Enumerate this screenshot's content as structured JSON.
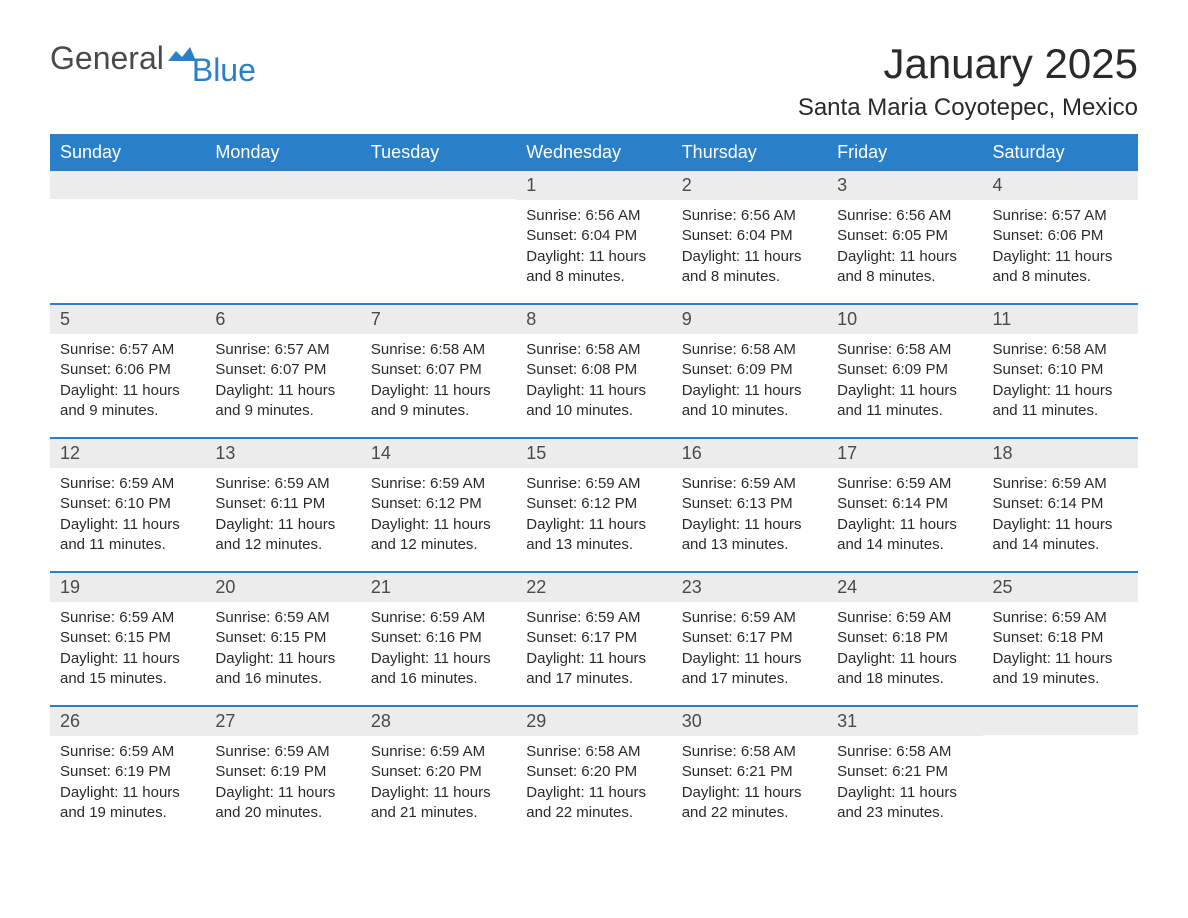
{
  "logo": {
    "general": "General",
    "blue": "Blue"
  },
  "header": {
    "month_title": "January 2025",
    "location": "Santa Maria Coyotepec, Mexico"
  },
  "colors": {
    "header_bg": "#2a7fc9",
    "header_text": "#ffffff",
    "day_number_bg": "#ececec",
    "text": "#2a2a2a",
    "row_border": "#2a7fc9"
  },
  "weekdays": [
    "Sunday",
    "Monday",
    "Tuesday",
    "Wednesday",
    "Thursday",
    "Friday",
    "Saturday"
  ],
  "weeks": [
    [
      null,
      null,
      null,
      {
        "day": "1",
        "sunrise": "Sunrise: 6:56 AM",
        "sunset": "Sunset: 6:04 PM",
        "daylight": "Daylight: 11 hours and 8 minutes."
      },
      {
        "day": "2",
        "sunrise": "Sunrise: 6:56 AM",
        "sunset": "Sunset: 6:04 PM",
        "daylight": "Daylight: 11 hours and 8 minutes."
      },
      {
        "day": "3",
        "sunrise": "Sunrise: 6:56 AM",
        "sunset": "Sunset: 6:05 PM",
        "daylight": "Daylight: 11 hours and 8 minutes."
      },
      {
        "day": "4",
        "sunrise": "Sunrise: 6:57 AM",
        "sunset": "Sunset: 6:06 PM",
        "daylight": "Daylight: 11 hours and 8 minutes."
      }
    ],
    [
      {
        "day": "5",
        "sunrise": "Sunrise: 6:57 AM",
        "sunset": "Sunset: 6:06 PM",
        "daylight": "Daylight: 11 hours and 9 minutes."
      },
      {
        "day": "6",
        "sunrise": "Sunrise: 6:57 AM",
        "sunset": "Sunset: 6:07 PM",
        "daylight": "Daylight: 11 hours and 9 minutes."
      },
      {
        "day": "7",
        "sunrise": "Sunrise: 6:58 AM",
        "sunset": "Sunset: 6:07 PM",
        "daylight": "Daylight: 11 hours and 9 minutes."
      },
      {
        "day": "8",
        "sunrise": "Sunrise: 6:58 AM",
        "sunset": "Sunset: 6:08 PM",
        "daylight": "Daylight: 11 hours and 10 minutes."
      },
      {
        "day": "9",
        "sunrise": "Sunrise: 6:58 AM",
        "sunset": "Sunset: 6:09 PM",
        "daylight": "Daylight: 11 hours and 10 minutes."
      },
      {
        "day": "10",
        "sunrise": "Sunrise: 6:58 AM",
        "sunset": "Sunset: 6:09 PM",
        "daylight": "Daylight: 11 hours and 11 minutes."
      },
      {
        "day": "11",
        "sunrise": "Sunrise: 6:58 AM",
        "sunset": "Sunset: 6:10 PM",
        "daylight": "Daylight: 11 hours and 11 minutes."
      }
    ],
    [
      {
        "day": "12",
        "sunrise": "Sunrise: 6:59 AM",
        "sunset": "Sunset: 6:10 PM",
        "daylight": "Daylight: 11 hours and 11 minutes."
      },
      {
        "day": "13",
        "sunrise": "Sunrise: 6:59 AM",
        "sunset": "Sunset: 6:11 PM",
        "daylight": "Daylight: 11 hours and 12 minutes."
      },
      {
        "day": "14",
        "sunrise": "Sunrise: 6:59 AM",
        "sunset": "Sunset: 6:12 PM",
        "daylight": "Daylight: 11 hours and 12 minutes."
      },
      {
        "day": "15",
        "sunrise": "Sunrise: 6:59 AM",
        "sunset": "Sunset: 6:12 PM",
        "daylight": "Daylight: 11 hours and 13 minutes."
      },
      {
        "day": "16",
        "sunrise": "Sunrise: 6:59 AM",
        "sunset": "Sunset: 6:13 PM",
        "daylight": "Daylight: 11 hours and 13 minutes."
      },
      {
        "day": "17",
        "sunrise": "Sunrise: 6:59 AM",
        "sunset": "Sunset: 6:14 PM",
        "daylight": "Daylight: 11 hours and 14 minutes."
      },
      {
        "day": "18",
        "sunrise": "Sunrise: 6:59 AM",
        "sunset": "Sunset: 6:14 PM",
        "daylight": "Daylight: 11 hours and 14 minutes."
      }
    ],
    [
      {
        "day": "19",
        "sunrise": "Sunrise: 6:59 AM",
        "sunset": "Sunset: 6:15 PM",
        "daylight": "Daylight: 11 hours and 15 minutes."
      },
      {
        "day": "20",
        "sunrise": "Sunrise: 6:59 AM",
        "sunset": "Sunset: 6:15 PM",
        "daylight": "Daylight: 11 hours and 16 minutes."
      },
      {
        "day": "21",
        "sunrise": "Sunrise: 6:59 AM",
        "sunset": "Sunset: 6:16 PM",
        "daylight": "Daylight: 11 hours and 16 minutes."
      },
      {
        "day": "22",
        "sunrise": "Sunrise: 6:59 AM",
        "sunset": "Sunset: 6:17 PM",
        "daylight": "Daylight: 11 hours and 17 minutes."
      },
      {
        "day": "23",
        "sunrise": "Sunrise: 6:59 AM",
        "sunset": "Sunset: 6:17 PM",
        "daylight": "Daylight: 11 hours and 17 minutes."
      },
      {
        "day": "24",
        "sunrise": "Sunrise: 6:59 AM",
        "sunset": "Sunset: 6:18 PM",
        "daylight": "Daylight: 11 hours and 18 minutes."
      },
      {
        "day": "25",
        "sunrise": "Sunrise: 6:59 AM",
        "sunset": "Sunset: 6:18 PM",
        "daylight": "Daylight: 11 hours and 19 minutes."
      }
    ],
    [
      {
        "day": "26",
        "sunrise": "Sunrise: 6:59 AM",
        "sunset": "Sunset: 6:19 PM",
        "daylight": "Daylight: 11 hours and 19 minutes."
      },
      {
        "day": "27",
        "sunrise": "Sunrise: 6:59 AM",
        "sunset": "Sunset: 6:19 PM",
        "daylight": "Daylight: 11 hours and 20 minutes."
      },
      {
        "day": "28",
        "sunrise": "Sunrise: 6:59 AM",
        "sunset": "Sunset: 6:20 PM",
        "daylight": "Daylight: 11 hours and 21 minutes."
      },
      {
        "day": "29",
        "sunrise": "Sunrise: 6:58 AM",
        "sunset": "Sunset: 6:20 PM",
        "daylight": "Daylight: 11 hours and 22 minutes."
      },
      {
        "day": "30",
        "sunrise": "Sunrise: 6:58 AM",
        "sunset": "Sunset: 6:21 PM",
        "daylight": "Daylight: 11 hours and 22 minutes."
      },
      {
        "day": "31",
        "sunrise": "Sunrise: 6:58 AM",
        "sunset": "Sunset: 6:21 PM",
        "daylight": "Daylight: 11 hours and 23 minutes."
      },
      null
    ]
  ]
}
